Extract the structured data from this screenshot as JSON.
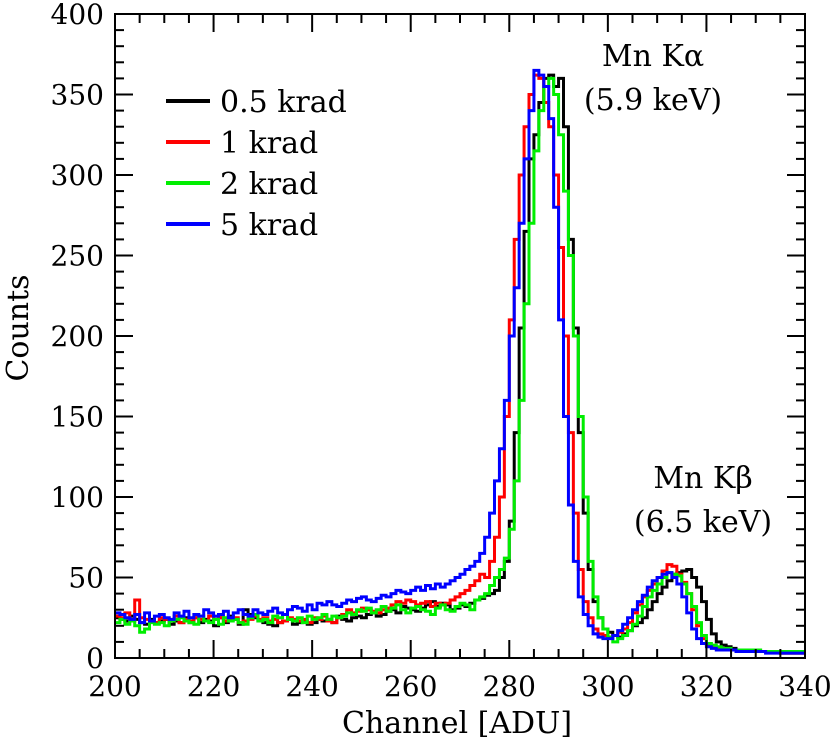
{
  "chart_data": {
    "type": "line",
    "step": true,
    "title": "",
    "xlabel": "Channel [ADU]",
    "ylabel": "Counts",
    "xlim": [
      200,
      340
    ],
    "ylim": [
      0,
      400
    ],
    "xticks": [
      200,
      220,
      240,
      260,
      280,
      300,
      320,
      340
    ],
    "yticks": [
      0,
      50,
      100,
      150,
      200,
      250,
      300,
      350,
      400
    ],
    "xtick_labels": [
      "200",
      "220",
      "240",
      "260",
      "280",
      "300",
      "320",
      "340"
    ],
    "ytick_labels": [
      "0",
      "50",
      "100",
      "150",
      "200",
      "250",
      "300",
      "350",
      "400"
    ],
    "bin_width": 1,
    "x_start": 200,
    "legend_position": "top-left",
    "series": [
      {
        "name": "0.5 krad",
        "color": "#000000",
        "values": [
          25,
          24,
          23,
          26,
          24,
          22,
          21,
          24,
          22,
          23,
          24,
          21,
          23,
          22,
          25,
          22,
          25,
          22,
          24,
          23,
          20,
          25,
          22,
          26,
          24,
          21,
          30,
          27,
          25,
          23,
          22,
          21,
          20,
          22,
          23,
          24,
          21,
          22,
          23,
          21,
          22,
          24,
          23,
          24,
          22,
          26,
          24,
          23,
          25,
          26,
          25,
          27,
          28,
          26,
          27,
          29,
          30,
          28,
          32,
          31,
          30,
          29,
          31,
          33,
          35,
          32,
          34,
          33,
          30,
          31,
          33,
          32,
          34,
          36,
          37,
          39,
          40,
          42,
          50,
          60,
          85,
          140,
          205,
          265,
          310,
          325,
          345,
          360,
          362,
          355,
          360,
          330,
          260,
          205,
          140,
          90,
          55,
          35,
          25,
          18,
          16,
          14,
          13,
          15,
          17,
          20,
          22,
          25,
          30,
          35,
          40,
          44,
          48,
          52,
          53,
          54,
          55,
          50,
          44,
          35,
          24,
          15,
          10,
          8,
          7,
          6,
          5,
          5,
          5,
          4,
          4,
          4,
          4,
          4,
          4,
          3,
          3,
          3,
          3,
          3
        ]
      },
      {
        "name": "1 krad",
        "color": "#ff0000",
        "values": [
          26,
          25,
          28,
          23,
          36,
          25,
          24,
          23,
          22,
          25,
          24,
          23,
          26,
          22,
          24,
          23,
          25,
          24,
          23,
          26,
          24,
          25,
          23,
          24,
          25,
          22,
          23,
          24,
          26,
          24,
          25,
          23,
          24,
          22,
          23,
          25,
          24,
          23,
          24,
          22,
          25,
          24,
          26,
          23,
          22,
          25,
          27,
          30,
          28,
          29,
          31,
          30,
          29,
          28,
          30,
          31,
          33,
          35,
          34,
          36,
          35,
          33,
          34,
          35,
          32,
          34,
          33,
          34,
          36,
          38,
          40,
          42,
          45,
          48,
          52,
          50,
          60,
          75,
          100,
          150,
          210,
          260,
          300,
          330,
          350,
          362,
          360,
          345,
          330,
          300,
          255,
          200,
          140,
          90,
          55,
          35,
          25,
          18,
          15,
          14,
          13,
          14,
          16,
          18,
          22,
          28,
          33,
          38,
          42,
          46,
          50,
          54,
          58,
          57,
          52,
          47,
          40,
          30,
          20,
          12,
          8,
          7,
          6,
          5,
          5,
          5,
          5,
          5,
          4,
          4,
          4,
          4,
          4,
          4,
          4,
          3,
          3,
          3,
          3,
          3
        ]
      },
      {
        "name": "2 krad",
        "color": "#00ee00",
        "values": [
          22,
          24,
          21,
          23,
          20,
          16,
          18,
          22,
          21,
          22,
          20,
          23,
          24,
          25,
          23,
          22,
          21,
          26,
          23,
          22,
          24,
          21,
          25,
          23,
          24,
          22,
          21,
          25,
          27,
          23,
          24,
          22,
          26,
          25,
          27,
          24,
          23,
          25,
          22,
          26,
          24,
          25,
          27,
          24,
          26,
          25,
          26,
          28,
          27,
          30,
          29,
          31,
          28,
          30,
          32,
          29,
          31,
          33,
          30,
          28,
          31,
          32,
          30,
          29,
          27,
          31,
          33,
          30,
          29,
          32,
          34,
          33,
          30,
          36,
          38,
          40,
          45,
          50,
          55,
          62,
          80,
          110,
          160,
          220,
          270,
          315,
          340,
          355,
          360,
          350,
          325,
          290,
          250,
          200,
          150,
          100,
          60,
          38,
          25,
          18,
          13,
          10,
          12,
          14,
          17,
          21,
          26,
          32,
          38,
          42,
          46,
          50,
          53,
          52,
          51,
          46,
          40,
          32,
          22,
          14,
          9,
          8,
          7,
          6,
          6,
          5,
          5,
          5,
          5,
          5,
          5,
          4,
          4,
          4,
          4,
          4,
          4,
          4,
          4,
          4
        ]
      },
      {
        "name": "5 krad",
        "color": "#0000ff",
        "values": [
          28,
          27,
          25,
          24,
          27,
          22,
          28,
          23,
          26,
          27,
          25,
          24,
          28,
          26,
          29,
          25,
          27,
          26,
          30,
          28,
          26,
          27,
          29,
          25,
          28,
          30,
          27,
          26,
          30,
          28,
          27,
          29,
          31,
          28,
          27,
          30,
          32,
          31,
          29,
          33,
          30,
          34,
          33,
          35,
          33,
          32,
          34,
          36,
          35,
          37,
          38,
          36,
          35,
          37,
          39,
          38,
          40,
          42,
          41,
          40,
          42,
          44,
          42,
          45,
          43,
          46,
          44,
          46,
          48,
          50,
          52,
          55,
          57,
          60,
          65,
          75,
          90,
          110,
          130,
          160,
          200,
          230,
          270,
          310,
          340,
          365,
          362,
          355,
          335,
          280,
          210,
          150,
          95,
          60,
          38,
          27,
          20,
          15,
          13,
          12,
          12,
          14,
          17,
          21,
          25,
          30,
          35,
          39,
          44,
          48,
          50,
          52,
          53,
          50,
          46,
          38,
          28,
          18,
          12,
          9,
          7,
          6,
          5,
          5,
          5,
          5,
          4,
          4,
          4,
          4,
          4,
          4,
          3,
          3,
          3,
          3,
          3,
          3,
          3,
          3
        ]
      }
    ],
    "annotations": [
      {
        "lines": [
          "Mn Kα",
          "(5.9 keV)"
        ]
      },
      {
        "lines": [
          "Mn Kβ",
          "(6.5 keV)"
        ]
      }
    ]
  }
}
